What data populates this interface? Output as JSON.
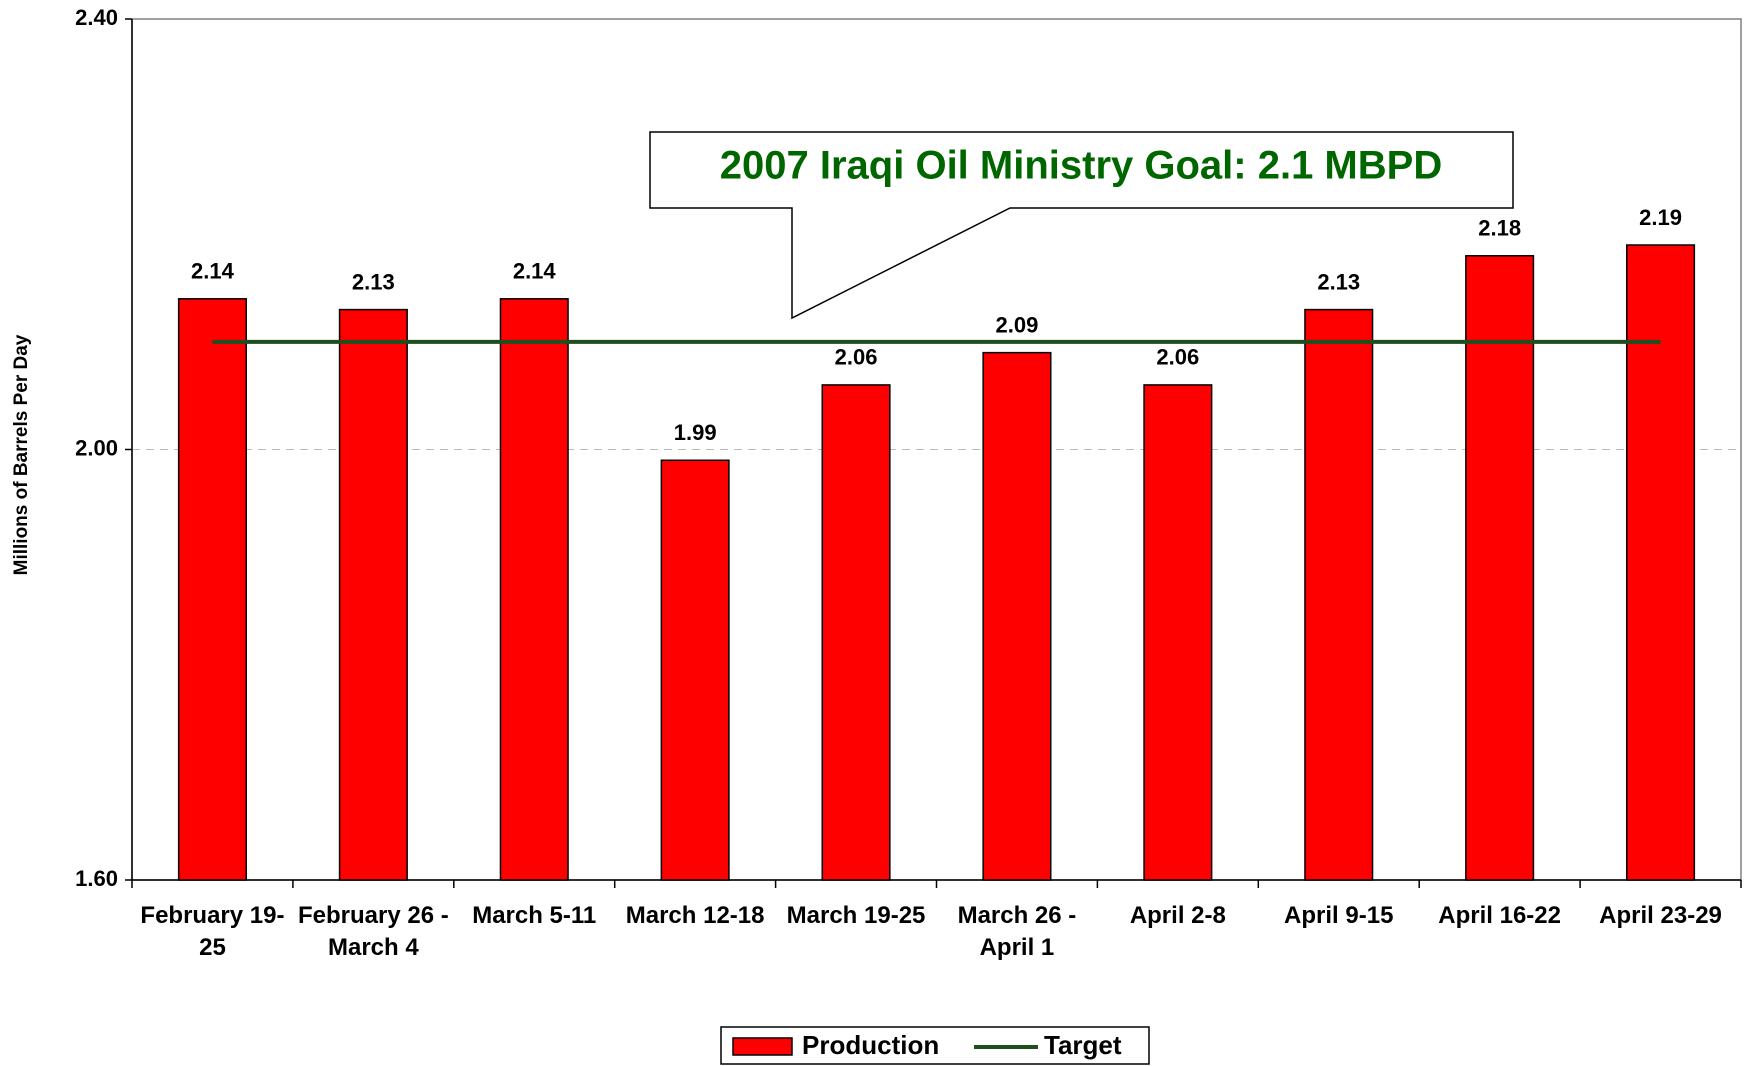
{
  "chart_data": {
    "type": "bar",
    "annotation": "2007 Iraqi Oil Ministry Goal:  2.1 MBPD",
    "y_axis_label": "Millions of Barrels Per Day",
    "categories": [
      "February 19-25",
      "February 26 - March 4",
      "March 5-11",
      "March 12-18",
      "March 19-25",
      "March 26 - April 1",
      "April 2-8",
      "April 9-15",
      "April 16-22",
      "April 23-29"
    ],
    "series": [
      {
        "name": "Production",
        "color": "#ff0000",
        "type": "bar",
        "values": [
          2.14,
          2.13,
          2.14,
          1.99,
          2.06,
          2.09,
          2.06,
          2.13,
          2.18,
          2.19
        ]
      },
      {
        "name": "Target",
        "color": "#1e4d1e",
        "type": "line",
        "values": [
          2.1,
          2.1,
          2.1,
          2.1,
          2.1,
          2.1,
          2.1,
          2.1,
          2.1,
          2.1
        ]
      }
    ],
    "ylim": [
      1.6,
      2.4
    ],
    "yticks": [
      {
        "value": 1.6,
        "label": "1.60"
      },
      {
        "value": 2.0,
        "label": "2.00"
      },
      {
        "value": 2.4,
        "label": "2.40"
      }
    ],
    "grid": true,
    "legend": "bottom"
  }
}
